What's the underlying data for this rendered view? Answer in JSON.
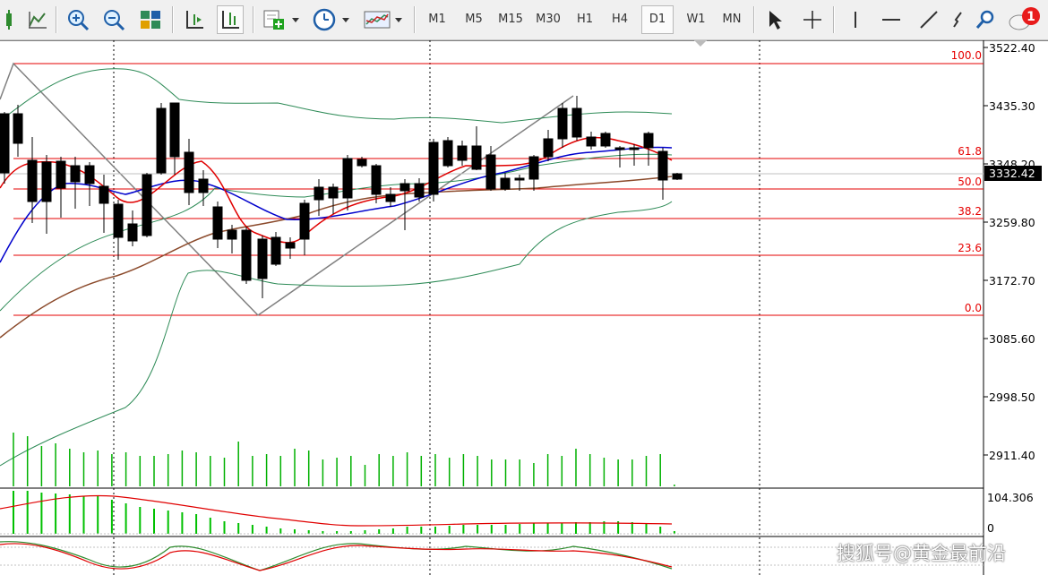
{
  "toolbar": {
    "timeframes": [
      "M1",
      "M5",
      "M15",
      "M30",
      "H1",
      "H4",
      "D1",
      "W1",
      "MN"
    ],
    "active_timeframe": "D1",
    "notification_count": "1",
    "tools": [
      "new-chart-icon",
      "indicators-icon",
      "zoom-in-icon",
      "zoom-out-icon",
      "tile-windows-icon",
      "chart-shift-icon",
      "autoscroll-icon",
      "add-indicator-icon",
      "clock-icon",
      "templates-icon",
      "cursor-icon",
      "crosshair-icon",
      "vertical-line-icon",
      "horizontal-line-icon",
      "trendline-icon",
      "arrow-tool-icon",
      "search-icon",
      "chat-icon"
    ]
  },
  "price_axis": {
    "labels": [
      "3522.40",
      "3435.30",
      "3348.20",
      "3259.80",
      "3172.70",
      "3085.60",
      "2998.50",
      "2911.40"
    ],
    "current_price": "3332.42"
  },
  "fibonacci": {
    "levels": [
      "100.0",
      "61.8",
      "50.0",
      "38.2",
      "23.6",
      "0.0"
    ]
  },
  "indicators": {
    "macd_label": "104.306",
    "macd_zero": "0"
  },
  "colors": {
    "bull_candle": "#ffffff",
    "bear_candle": "#000000",
    "fib_line": "#e60000",
    "ma_fast": "#e00000",
    "ma_mid": "#0000cc",
    "ma_slow": "#8b4a2b",
    "bollinger": "#2e8b57",
    "volume": "#00b000",
    "current_price_bg": "#000000",
    "notification": "#e81b1b"
  },
  "watermark": "搜狐号@黄金最前沿"
}
